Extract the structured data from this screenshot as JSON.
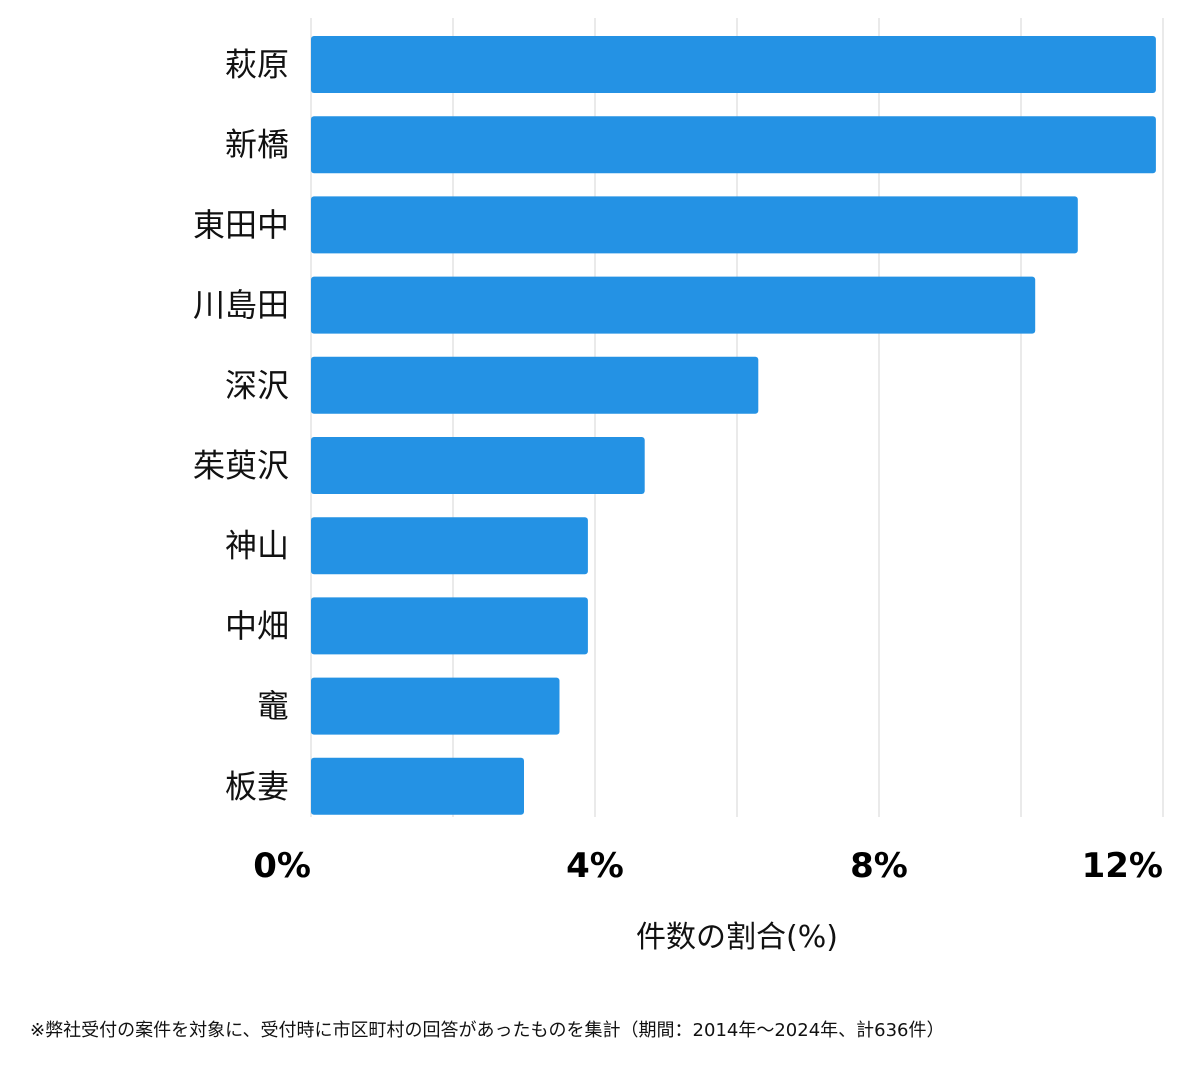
{
  "chart_data": {
    "type": "bar",
    "orientation": "horizontal",
    "categories": [
      "萩原",
      "新橋",
      "東田中",
      "川島田",
      "深沢",
      "茱萸沢",
      "神山",
      "中畑",
      "竈",
      "板妻"
    ],
    "values": [
      11.9,
      11.9,
      10.8,
      10.2,
      6.3,
      4.7,
      3.9,
      3.9,
      3.5,
      3.0
    ],
    "xlim": [
      0,
      12
    ],
    "xticks": [
      0,
      4,
      8,
      12
    ],
    "xtick_labels": [
      "0%",
      "4%",
      "8%",
      "12%"
    ],
    "xlabel": "件数の割合(%)",
    "ylabel": "",
    "grid": "vertical",
    "bar_color": "#2492e4",
    "grid_color": "#dddddd"
  },
  "footnote": "※弊社受付の案件を対象に、受付時に市区町村の回答があったものを集計（期間：2014年〜2024年、計636件）"
}
